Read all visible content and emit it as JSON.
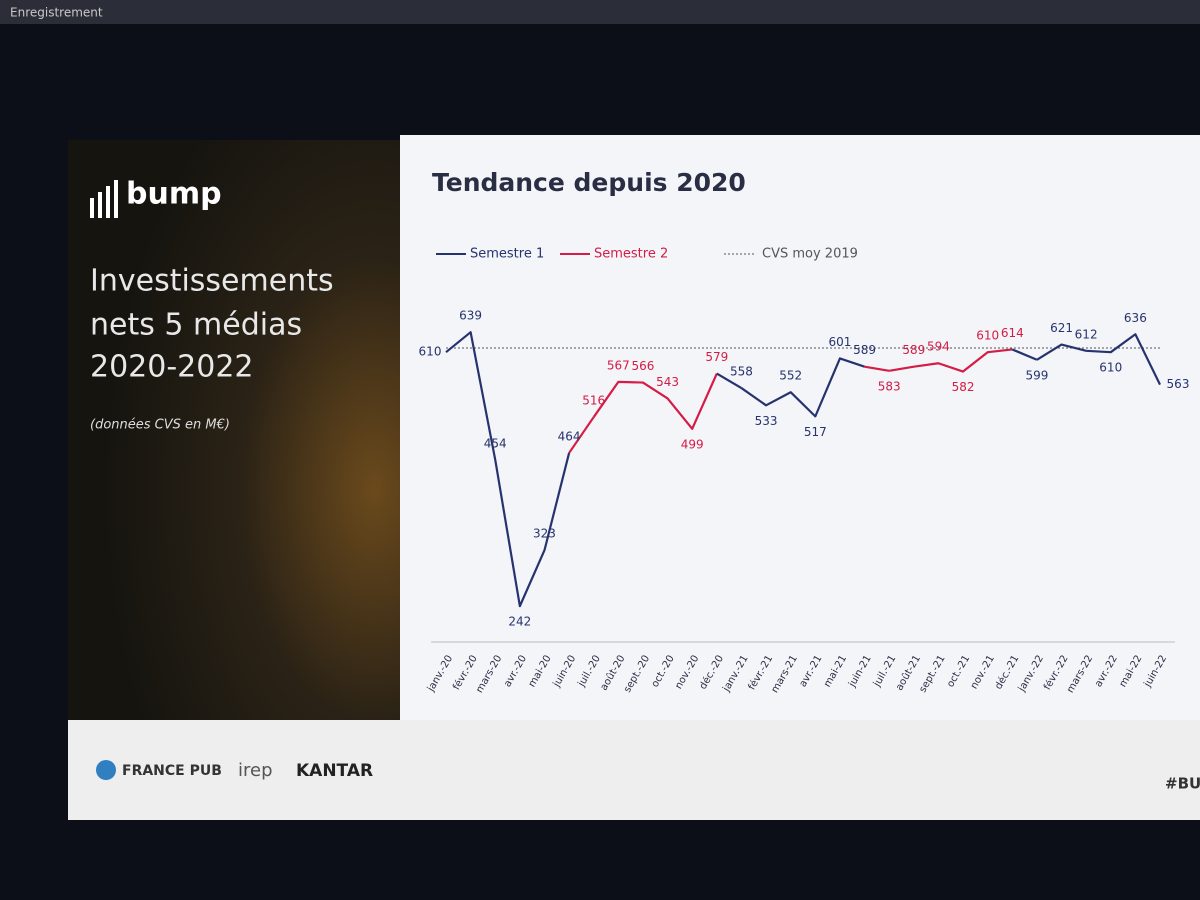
{
  "screen": {
    "recording_label": "Enregistrement"
  },
  "slide": {
    "logo": "bump",
    "heading": [
      "Investissements",
      "nets 5 médias",
      "2020-2022"
    ],
    "note": "(données CVS en M€)",
    "footer_logos": [
      "FRANCE PUB",
      "irep",
      "KANTAR"
    ],
    "hashtag": "#BU"
  },
  "chart_data": {
    "type": "line",
    "title": "Tendance depuis 2020",
    "categories": [
      "janv.-20",
      "févr.-20",
      "mars-20",
      "avr.-20",
      "mai-20",
      "juin-20",
      "juil.-20",
      "août-20",
      "sept.-20",
      "oct.-20",
      "nov.-20",
      "déc.-20",
      "janv.-21",
      "févr.-21",
      "mars-21",
      "avr.-21",
      "mai-21",
      "juin-21",
      "juil.-21",
      "août-21",
      "sept.-21",
      "oct.-21",
      "nov.-21",
      "déc.-21",
      "janv.-22",
      "févr.-22",
      "mars-22",
      "avr.-22",
      "mai-22",
      "juin-22"
    ],
    "series": [
      {
        "name": "Semestre 1",
        "color": "#27336e",
        "values": [
          610,
          639,
          454,
          242,
          323,
          464,
          null,
          null,
          null,
          null,
          null,
          null,
          558,
          533,
          552,
          517,
          601,
          589,
          null,
          null,
          null,
          null,
          null,
          null,
          599,
          621,
          612,
          610,
          636,
          563
        ]
      },
      {
        "name": "Semestre 2",
        "color": "#d41c46",
        "values": [
          null,
          null,
          null,
          null,
          null,
          null,
          516,
          567,
          566,
          543,
          499,
          579,
          null,
          null,
          null,
          null,
          null,
          null,
          583,
          589,
          594,
          582,
          610,
          614,
          null,
          null,
          null,
          null,
          null,
          null
        ]
      }
    ],
    "reference": {
      "name": "CVS moy 2019",
      "value": 616,
      "color": "#555555"
    },
    "ylim": [
      190,
      690
    ],
    "grid": false
  }
}
